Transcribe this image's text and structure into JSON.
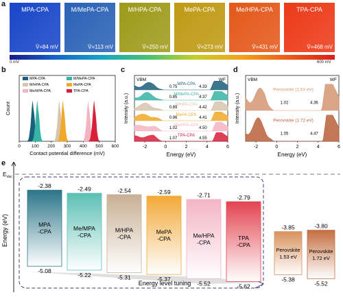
{
  "panels": {
    "a": "a",
    "b": "b",
    "c": "c",
    "d": "d",
    "e": "e"
  },
  "panel_a": {
    "samples": [
      {
        "name": "MPA-CPA",
        "value": "V̄=84 mV",
        "color": "#1846c8"
      },
      {
        "name": "M/MePA-CPA",
        "value": "V̄=113 mV",
        "color": "#2a62b6"
      },
      {
        "name": "M/HPA-CPA",
        "value": "V̄=250 mV",
        "color": "#9e9a1a"
      },
      {
        "name": "MePA-CPA",
        "value": "V̄=273 mV",
        "color": "#bf9a14"
      },
      {
        "name": "Me/HPA-CPA",
        "value": "V̄=431 mV",
        "color": "#e4581a"
      },
      {
        "name": "TPA-CPA",
        "value": "V̄=468 mV",
        "color": "#ec3a18"
      }
    ],
    "scale_min": "0 mV",
    "scale_max": "600 mV"
  },
  "chart_data": [
    {
      "type": "area",
      "panel": "b",
      "xlabel": "Contact potential difference (mV)",
      "ylabel": "Count",
      "xlim": [
        0,
        600
      ],
      "xticks": [
        0,
        100,
        200,
        300,
        400,
        500,
        600
      ],
      "legend_position": "top",
      "series": [
        {
          "name": "MPA-CPA",
          "color": "#1a5f7a",
          "center": 84
        },
        {
          "name": "M/MePA-CPA",
          "color": "#38b4a6",
          "center": 113
        },
        {
          "name": "M/HPA-CPA",
          "color": "#d6c4ab",
          "center": 250
        },
        {
          "name": "MePA-CPA",
          "color": "#f0a928",
          "center": 273
        },
        {
          "name": "Me/HPA-CPA",
          "color": "#f3b4c2",
          "center": 431
        },
        {
          "name": "TPA-CPA",
          "color": "#d8203a",
          "center": 468
        }
      ]
    },
    {
      "type": "line",
      "panel": "c",
      "xlabel": "Energy (eV)",
      "ylabel": "Intensity (a.u.)",
      "xlim": [
        -3,
        6
      ],
      "xticks": [
        -2,
        0,
        2,
        4,
        6
      ],
      "annotations": [
        "VBM",
        "WF"
      ],
      "series": [
        {
          "name": "MPA-CPA",
          "color": "#1a5f7a",
          "vbm": "0.75",
          "wf": "4.33"
        },
        {
          "name": "M/MePA-CPA",
          "color": "#38b4a6",
          "vbm": "0.85",
          "wf": "4.37"
        },
        {
          "name": "M/HPA-CPA",
          "color": "#d6c4ab",
          "vbm": "0.89",
          "wf": "4.42"
        },
        {
          "name": "MePA-CPA",
          "color": "#f0a928",
          "vbm": "0.96",
          "wf": "4.41"
        },
        {
          "name": "Me/HPA-CPA",
          "color": "#f3b4c2",
          "vbm": "1.02",
          "wf": "4.50"
        },
        {
          "name": "TPA-CPA",
          "color": "#d8203a",
          "vbm": "1.07",
          "wf": "4.55"
        }
      ]
    },
    {
      "type": "line",
      "panel": "d",
      "xlabel": "Energy (eV)",
      "ylabel": "Intensity (a.u.)",
      "xlim": [
        -3,
        6
      ],
      "xticks": [
        -2,
        0,
        2,
        4,
        6
      ],
      "annotations": [
        "VBM",
        "WF"
      ],
      "series": [
        {
          "name": "Perovskite (1.53 eV)",
          "color": "#d59772",
          "vbm": "1.02",
          "wf": "4.36"
        },
        {
          "name": "Perovskite (1.72 eV)",
          "color": "#b9603a",
          "vbm": "1.05",
          "wf": "4.47"
        }
      ]
    },
    {
      "type": "bar",
      "panel": "e",
      "ylabel": "Energy (eV)",
      "evac_label": "E",
      "evac_sub": "Vac",
      "bottom_label": "Energy level tuning",
      "categories": [
        "MPA\n-CPA",
        "Me/MPA\n-CPA",
        "M/HPA\n-CPA",
        "MePA\n-CPA",
        "Me/HPA\n-CPA",
        "TPA\n-CPA",
        "Perovskite\n1.53 eV",
        "Perovskite\n1.72 eV"
      ],
      "top_labels": [
        "-2.38",
        "-2.49",
        "-2.54",
        "-2.59",
        "-2.71",
        "-2.79",
        "-3.85",
        "-3.80"
      ],
      "bottom_labels": [
        "-5.08",
        "-5.22",
        "-5.31",
        "-5.37",
        "-5.52",
        "-5.62",
        "-5.38",
        "-5.52"
      ],
      "series": [
        {
          "top": [
            -2.38,
            -2.49,
            -2.54,
            -2.59,
            -2.71,
            -2.79,
            -3.85,
            -3.8
          ],
          "bottom": [
            -5.08,
            -5.22,
            -5.31,
            -5.37,
            -5.52,
            -5.62,
            -5.38,
            -5.52
          ]
        }
      ],
      "colors": [
        "#2b7588",
        "#5cc0b4",
        "#c8b094",
        "#f2a938",
        "#f3b4c6",
        "#e24450",
        "#d8925e",
        "#c46e40"
      ]
    }
  ]
}
